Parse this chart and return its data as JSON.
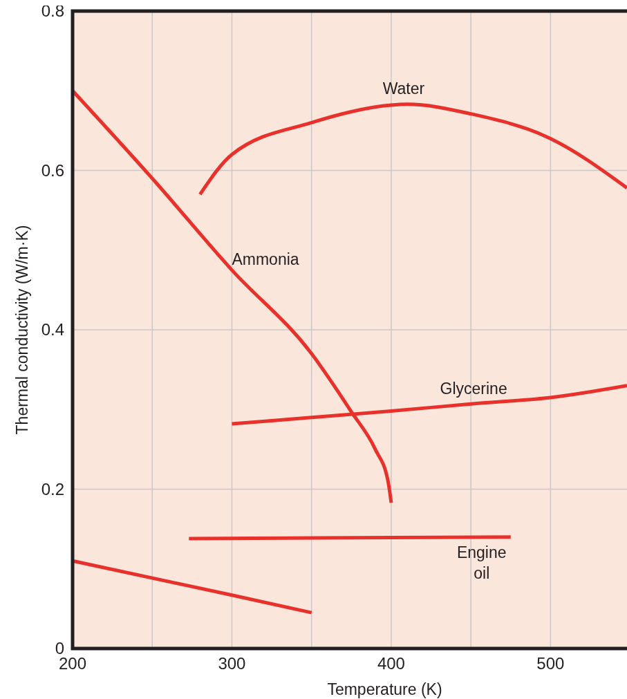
{
  "chart_data": {
    "type": "line",
    "xlabel": "Temperature (K)",
    "ylabel": "Thermal conductivity (W/m·K)",
    "xlim": [
      200,
      548
    ],
    "xticks": [
      200,
      {
        "value": 250,
        "label": null
      },
      300,
      {
        "value": 350,
        "label": null
      },
      400,
      {
        "value": 450,
        "label": null
      },
      500
    ],
    "ylim": [
      0,
      0.8
    ],
    "yticks": [
      0,
      0.2,
      0.4,
      0.6,
      0.8
    ],
    "grid": true,
    "marker": "none",
    "line_style": "solid",
    "series": [
      {
        "name": "Water",
        "color": "#e8312a",
        "x": [
          280,
          300,
          350,
          400,
          410,
          450,
          500,
          548
        ],
        "values": [
          0.57,
          0.62,
          0.66,
          0.682,
          0.683,
          0.671,
          0.64,
          0.578
        ]
      },
      {
        "name": "Ammonia",
        "color": "#e8312a",
        "x": [
          200,
          250,
          300,
          350,
          375,
          390,
          398,
          400
        ],
        "values": [
          0.7,
          0.59,
          0.475,
          0.37,
          0.297,
          0.25,
          0.21,
          0.183
        ]
      },
      {
        "name": "Glycerine",
        "color": "#e8312a",
        "x": [
          300,
          350,
          400,
          450,
          500,
          548
        ],
        "values": [
          0.282,
          0.29,
          0.298,
          0.307,
          0.315,
          0.33
        ]
      },
      {
        "name": "Engine oil",
        "color": "#e8312a",
        "x": [
          273,
          475
        ],
        "values": [
          0.138,
          0.14
        ]
      },
      {
        "color": "#e8312a",
        "x": [
          200,
          300,
          350
        ],
        "values": [
          0.11,
          0.067,
          0.045
        ]
      }
    ]
  }
}
